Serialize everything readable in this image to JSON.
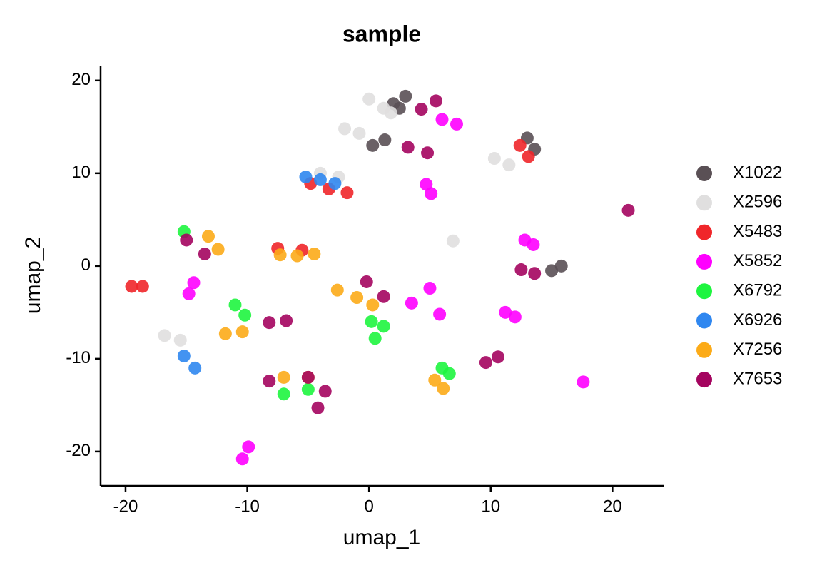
{
  "chart_data": {
    "type": "scatter",
    "title": "sample",
    "x_label": "umap_1",
    "y_label": "umap_2",
    "xlim": [
      -22.05,
      24.2
    ],
    "ylim": [
      -23.7,
      21.6
    ],
    "xticks": [
      -20,
      -10,
      0,
      10,
      20
    ],
    "yticks": [
      -20,
      -10,
      0,
      10,
      20
    ],
    "legend": "right",
    "series": [
      {
        "name": "X1022",
        "color": "#5a5055",
        "x": [
          2.0,
          3.0,
          2.5,
          0.3,
          1.3,
          13.0,
          13.6,
          15.0,
          15.8
        ],
        "y": [
          17.5,
          18.3,
          17.0,
          13.0,
          13.6,
          13.8,
          12.6,
          -0.5,
          0.0
        ]
      },
      {
        "name": "X2596",
        "color": "#e0dfdf",
        "x": [
          0.0,
          1.2,
          1.8,
          -2.0,
          -0.8,
          10.3,
          11.5,
          -4.0,
          -2.5,
          6.9,
          -16.8,
          -15.5
        ],
        "y": [
          18.0,
          17.0,
          16.5,
          14.8,
          14.3,
          11.6,
          10.9,
          10.0,
          9.6,
          2.7,
          -7.5,
          -8.0
        ]
      },
      {
        "name": "X5483",
        "color": "#f0262a",
        "x": [
          12.4,
          13.1,
          -4.8,
          -3.3,
          -1.8,
          -7.5,
          -5.5,
          -19.5,
          -18.6
        ],
        "y": [
          13.0,
          11.8,
          8.9,
          8.3,
          7.9,
          1.9,
          1.7,
          -2.2,
          -2.2
        ]
      },
      {
        "name": "X5852",
        "color": "#ff00ff",
        "x": [
          6.0,
          7.2,
          4.7,
          5.1,
          12.8,
          13.5,
          -14.8,
          -14.4,
          3.5,
          5.0,
          5.8,
          11.2,
          12.0,
          17.6,
          -10.4,
          -9.9
        ],
        "y": [
          15.8,
          15.3,
          8.8,
          7.8,
          2.8,
          2.3,
          -3.0,
          -1.8,
          -4.0,
          -2.4,
          -5.2,
          -5.0,
          -5.5,
          -12.5,
          -20.8,
          -19.5
        ]
      },
      {
        "name": "X6792",
        "color": "#1ef53f",
        "x": [
          -15.2,
          -11.0,
          -10.2,
          0.2,
          1.2,
          0.5,
          6.0,
          6.6,
          -7.0,
          -5.0
        ],
        "y": [
          3.7,
          -4.2,
          -5.3,
          -6.0,
          -6.5,
          -7.8,
          -11.0,
          -11.6,
          -13.8,
          -13.3
        ]
      },
      {
        "name": "X6926",
        "color": "#2f87f0",
        "x": [
          -5.2,
          -4.0,
          -2.8,
          -15.2,
          -14.3
        ],
        "y": [
          9.6,
          9.3,
          8.9,
          -9.7,
          -11.0
        ]
      },
      {
        "name": "X7256",
        "color": "#fcab18",
        "x": [
          -13.2,
          -12.4,
          -7.3,
          -5.9,
          -4.5,
          -11.8,
          -10.4,
          -2.6,
          -1.0,
          0.3,
          5.4,
          6.1,
          -7.0,
          -5.0
        ],
        "y": [
          3.2,
          1.8,
          1.2,
          1.1,
          1.3,
          -7.3,
          -7.1,
          -2.6,
          -3.4,
          -4.2,
          -12.3,
          -13.2,
          -12.0,
          -12.0
        ]
      },
      {
        "name": "X7653",
        "color": "#a4045f",
        "x": [
          4.3,
          5.5,
          3.2,
          4.8,
          -15.0,
          -13.5,
          -8.2,
          -6.8,
          -0.2,
          1.2,
          12.5,
          13.6,
          9.6,
          10.6,
          21.3,
          -8.2,
          -5.0,
          -4.2,
          -3.6
        ],
        "y": [
          16.9,
          17.8,
          12.8,
          12.2,
          2.8,
          1.3,
          -6.1,
          -5.9,
          -1.7,
          -3.3,
          -0.4,
          -0.8,
          -10.4,
          -9.8,
          6.0,
          -12.4,
          -12.0,
          -15.3,
          -13.5
        ]
      }
    ]
  }
}
